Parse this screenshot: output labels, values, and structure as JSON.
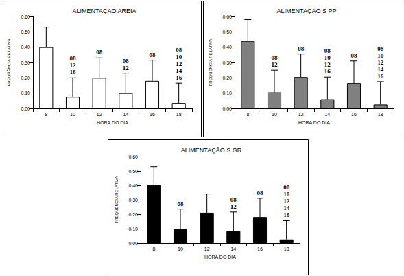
{
  "chart_data": [
    {
      "type": "bar",
      "title": "ALIMENTAÇÃO AREIA",
      "x_label": "HORA DO DIA",
      "y_label": "FREQÜÊNCIA RELATIVA",
      "categories": [
        "8",
        "10",
        "12",
        "14",
        "16",
        "18"
      ],
      "values": [
        0.4,
        0.075,
        0.2,
        0.1,
        0.18,
        0.035
      ],
      "errors": [
        0.13,
        0.125,
        0.13,
        0.13,
        0.135,
        0.13
      ],
      "annotations": [
        null,
        [
          "08",
          "12",
          "16"
        ],
        [
          "08"
        ],
        [
          "08",
          "12"
        ],
        [
          "08"
        ],
        [
          "08",
          "10",
          "12",
          "14",
          "16"
        ]
      ],
      "color": "#ffffff",
      "ylim": [
        0,
        0.6
      ],
      "yticks": [
        {
          "value": 0,
          "label": "0,00"
        },
        {
          "value": 0.1,
          "label": "0,10"
        },
        {
          "value": 0.2,
          "label": "0,20"
        },
        {
          "value": 0.3,
          "label": "0,30"
        },
        {
          "value": 0.4,
          "label": "0,40"
        },
        {
          "value": 0.5,
          "label": "0,50"
        },
        {
          "value": 0.6,
          "label": "0,60"
        }
      ]
    },
    {
      "type": "bar",
      "title": "ALIMENTAÇÃO S PP",
      "x_label": "HORA DO DIA",
      "y_label": "FREQÜÊNCIA RELATIVA",
      "categories": [
        "8",
        "10",
        "12",
        "14",
        "16",
        "18"
      ],
      "values": [
        0.44,
        0.105,
        0.205,
        0.06,
        0.165,
        0.025
      ],
      "errors": [
        0.14,
        0.145,
        0.15,
        0.145,
        0.145,
        0.15
      ],
      "annotations": [
        null,
        [
          "08",
          "12"
        ],
        [
          "08"
        ],
        [
          "08",
          "10",
          "12",
          "16"
        ],
        [
          "08"
        ],
        [
          "08",
          "10",
          "12",
          "14",
          "16"
        ]
      ],
      "color": "#808080",
      "ylim": [
        0,
        0.6
      ],
      "yticks": [
        {
          "value": 0,
          "label": "0,00"
        },
        {
          "value": 0.1,
          "label": "0,10"
        },
        {
          "value": 0.2,
          "label": "0,20"
        },
        {
          "value": 0.3,
          "label": "0,30"
        },
        {
          "value": 0.4,
          "label": "0,40"
        },
        {
          "value": 0.5,
          "label": "0,50"
        },
        {
          "value": 0.6,
          "label": "0,60"
        }
      ]
    },
    {
      "type": "bar",
      "title": "ALIMENTAÇÃO S GR",
      "x_label": "HORA DO DIA",
      "y_label": "FREQÜÊNCIA RELATIVA",
      "categories": [
        "8",
        "10",
        "12",
        "14",
        "16",
        "18"
      ],
      "values": [
        0.4,
        0.1,
        0.21,
        0.085,
        0.18,
        0.025
      ],
      "errors": [
        0.13,
        0.135,
        0.13,
        0.13,
        0.13,
        0.13
      ],
      "annotations": [
        null,
        [
          "08"
        ],
        null,
        [
          "08",
          "12"
        ],
        [
          "08"
        ],
        [
          "08",
          "10",
          "12",
          "14",
          "16"
        ]
      ],
      "color": "#000000",
      "ylim": [
        0,
        0.6
      ],
      "yticks": [
        {
          "value": 0,
          "label": "0,00"
        },
        {
          "value": 0.1,
          "label": "0,10"
        },
        {
          "value": 0.2,
          "label": "0,20"
        },
        {
          "value": 0.3,
          "label": "0,30"
        },
        {
          "value": 0.4,
          "label": "0,40"
        },
        {
          "value": 0.5,
          "label": "0,50"
        },
        {
          "value": 0.6,
          "label": "0,60"
        }
      ]
    }
  ]
}
